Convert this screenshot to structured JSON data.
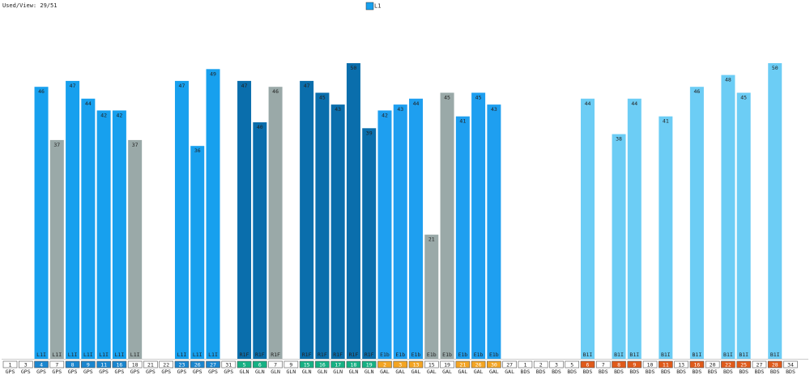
{
  "chart_data": {
    "type": "bar",
    "title": "Used/View: 29/51",
    "legend": [
      {
        "name": "L1",
        "color": "#17a0ee"
      }
    ],
    "ylim": [
      0,
      60
    ],
    "categories": [
      "1",
      "3",
      "4",
      "7",
      "8",
      "9",
      "11",
      "16",
      "18",
      "21",
      "22",
      "23",
      "26",
      "27",
      "31",
      "5",
      "6",
      "7",
      "9",
      "15",
      "16",
      "17",
      "18",
      "19",
      "2",
      "3",
      "13",
      "15",
      "19",
      "21",
      "26",
      "30",
      "27",
      "1",
      "2",
      "3",
      "5",
      "6",
      "7",
      "8",
      "9",
      "10",
      "11",
      "13",
      "16",
      "20",
      "22",
      "25",
      "27",
      "28",
      "34"
    ],
    "constellations": [
      "GPS",
      "GPS",
      "GPS",
      "GPS",
      "GPS",
      "GPS",
      "GPS",
      "GPS",
      "GPS",
      "GPS",
      "GPS",
      "GPS",
      "GPS",
      "GPS",
      "GPS",
      "GLN",
      "GLN",
      "GLN",
      "GLN",
      "GLN",
      "GLN",
      "GLN",
      "GLN",
      "GLN",
      "GAL",
      "GAL",
      "GAL",
      "GAL",
      "GAL",
      "GAL",
      "GAL",
      "GAL",
      "GAL",
      "BDS",
      "BDS",
      "BDS",
      "BDS",
      "BDS",
      "BDS",
      "BDS",
      "BDS",
      "BDS",
      "BDS",
      "BDS",
      "BDS",
      "BDS",
      "BDS",
      "BDS",
      "BDS",
      "BDS",
      "BDS"
    ],
    "signals": [
      null,
      null,
      "L1I",
      "L1I",
      "L1I",
      "L1I",
      "L1I",
      "L1I",
      "L1I",
      null,
      null,
      "L1I",
      "L1I",
      "L1I",
      null,
      "R1F",
      "R1F",
      "R1F",
      null,
      "R1F",
      "R1F",
      "R1F",
      "R1F",
      "R1F",
      "E1b",
      "E1b",
      "E1b",
      "E1b",
      "E1b",
      "E1b",
      "E1b",
      "E1b",
      null,
      null,
      null,
      null,
      null,
      "B1I",
      null,
      "B1I",
      "B1I",
      null,
      "B1I",
      null,
      "B1I",
      null,
      "B1I",
      "B1I",
      null,
      "B1I",
      null
    ],
    "values": [
      null,
      null,
      46,
      37,
      47,
      44,
      42,
      42,
      37,
      null,
      null,
      47,
      36,
      49,
      null,
      47,
      40,
      46,
      null,
      47,
      45,
      43,
      50,
      39,
      42,
      43,
      44,
      21,
      45,
      41,
      45,
      43,
      null,
      null,
      null,
      null,
      null,
      44,
      null,
      38,
      44,
      null,
      41,
      null,
      46,
      null,
      48,
      45,
      null,
      50,
      null
    ],
    "colors": [
      "#17a0ee",
      "#17a0ee",
      "#17a0ee",
      "#9aa9a8",
      "#17a0ee",
      "#17a0ee",
      "#17a0ee",
      "#17a0ee",
      "#9aa9a8",
      "#17a0ee",
      "#17a0ee",
      "#17a0ee",
      "#17a0ee",
      "#17a0ee",
      "#17a0ee",
      "#0a6eac",
      "#0a6eac",
      "#9aa9a8",
      "#0a6eac",
      "#0a6eac",
      "#0a6eac",
      "#0a6eac",
      "#0a6eac",
      "#0a6eac",
      "#1e9ff0",
      "#1e9ff0",
      "#1e9ff0",
      "#9aa9a8",
      "#9aa9a8",
      "#1e9ff0",
      "#1e9ff0",
      "#1e9ff0",
      "#1e9ff0",
      "#6ccdf5",
      "#6ccdf5",
      "#6ccdf5",
      "#6ccdf5",
      "#6ccdf5",
      "#6ccdf5",
      "#6ccdf5",
      "#6ccdf5",
      "#6ccdf5",
      "#6ccdf5",
      "#6ccdf5",
      "#6ccdf5",
      "#6ccdf5",
      "#6ccdf5",
      "#6ccdf5",
      "#6ccdf5",
      "#6ccdf5",
      "#6ccdf5"
    ],
    "box_colors": [
      "#fff",
      "#fff",
      "#1a86cf",
      "#fff",
      "#1a86cf",
      "#1a86cf",
      "#1a86cf",
      "#1a86cf",
      "#fff",
      "#fff",
      "#fff",
      "#1a86cf",
      "#1a86cf",
      "#1a86cf",
      "#fff",
      "#16b184",
      "#16b184",
      "#fff",
      "#fff",
      "#16b184",
      "#16b184",
      "#16b184",
      "#16b184",
      "#16b184",
      "#f4a523",
      "#f4a523",
      "#f4a523",
      "#fff",
      "#fff",
      "#f4a523",
      "#f4a523",
      "#f4a523",
      "#fff",
      "#fff",
      "#fff",
      "#fff",
      "#fff",
      "#e05a1a",
      "#fff",
      "#e05a1a",
      "#e05a1a",
      "#fff",
      "#e05a1a",
      "#fff",
      "#e05a1a",
      "#fff",
      "#e05a1a",
      "#e05a1a",
      "#fff",
      "#e05a1a",
      "#fff"
    ]
  }
}
